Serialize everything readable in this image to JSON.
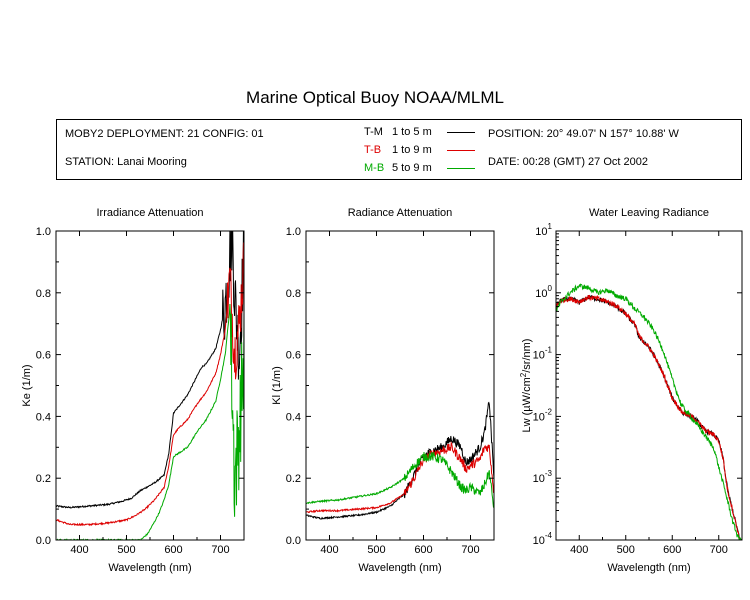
{
  "page": {
    "title": "Marine Optical Buoy NOAA/MLML",
    "info": {
      "deployment": "MOBY2 DEPLOYMENT: 21 CONFIG: 01",
      "station": "STATION: Lanai Mooring",
      "position": "POSITION: 20° 49.07' N   157° 10.88' W",
      "date": "DATE: 00:28 (GMT) 27 Oct 2002"
    },
    "legend": [
      {
        "code": "T-M",
        "range": "1 to 5  m",
        "color": "#000000"
      },
      {
        "code": "T-B",
        "range": "1 to 9  m",
        "color": "#dd0000"
      },
      {
        "code": "M-B",
        "range": "5 to 9  m",
        "color": "#00aa00"
      }
    ]
  },
  "chart_data": [
    {
      "type": "line",
      "title": "Irradiance Attenuation",
      "xlabel": "Wavelength (nm)",
      "ylabel": "Ke  (1/m)",
      "xlim": [
        350,
        750
      ],
      "ylim": [
        0,
        1
      ],
      "xticks": [
        400,
        500,
        600,
        700
      ],
      "yticks": [
        0,
        0.2,
        0.4,
        0.6,
        0.8,
        1.0
      ],
      "ytick_labels": [
        "0.0",
        "0.2",
        "0.4",
        "0.6",
        "0.8",
        "1.0"
      ],
      "series": [
        {
          "name": "T-M",
          "color": "#000000",
          "x": [
            350,
            380,
            420,
            460,
            490,
            510,
            530,
            560,
            580,
            590,
            600,
            610,
            630,
            650,
            660,
            670,
            690,
            700,
            710,
            720,
            725,
            730,
            740,
            750
          ],
          "y": [
            0.11,
            0.105,
            0.11,
            0.115,
            0.125,
            0.135,
            0.16,
            0.185,
            0.21,
            0.28,
            0.41,
            0.43,
            0.47,
            0.53,
            0.56,
            0.57,
            0.62,
            0.68,
            0.76,
            0.92,
            1.0,
            0.8,
            0.6,
            0.95
          ],
          "noise_from": 705,
          "noise_amp": 0.25
        },
        {
          "name": "T-B",
          "color": "#dd0000",
          "x": [
            350,
            380,
            420,
            460,
            500,
            520,
            540,
            560,
            580,
            590,
            600,
            610,
            630,
            650,
            660,
            670,
            690,
            700,
            710,
            720,
            730,
            740,
            750
          ],
          "y": [
            0.065,
            0.05,
            0.05,
            0.055,
            0.065,
            0.08,
            0.1,
            0.13,
            0.17,
            0.24,
            0.34,
            0.36,
            0.39,
            0.44,
            0.46,
            0.48,
            0.54,
            0.6,
            0.68,
            0.85,
            0.6,
            0.7,
            0.9
          ],
          "noise_from": 715,
          "noise_amp": 0.2
        },
        {
          "name": "M-B",
          "color": "#00aa00",
          "x": [
            350,
            530,
            545,
            560,
            570,
            580,
            590,
            600,
            610,
            630,
            650,
            660,
            670,
            690,
            700,
            710,
            720,
            730,
            740,
            750
          ],
          "y": [
            0.0,
            0.0,
            0.02,
            0.06,
            0.09,
            0.13,
            0.18,
            0.27,
            0.28,
            0.3,
            0.35,
            0.37,
            0.39,
            0.45,
            0.52,
            0.6,
            0.75,
            0.2,
            0.35,
            0.6
          ],
          "noise_from": 720,
          "noise_amp": 0.35
        }
      ]
    },
    {
      "type": "line",
      "title": "Radiance Attenuation",
      "xlabel": "Wavelength (nm)",
      "ylabel": "Kl  (1/m)",
      "xlim": [
        350,
        750
      ],
      "ylim": [
        0,
        1
      ],
      "xticks": [
        400,
        500,
        600,
        700
      ],
      "yticks": [
        0,
        0.2,
        0.4,
        0.6,
        0.8,
        1.0
      ],
      "ytick_labels": [
        "0.0",
        "0.2",
        "0.4",
        "0.6",
        "0.8",
        "1.0"
      ],
      "series": [
        {
          "name": "T-M",
          "color": "#000000",
          "x": [
            350,
            380,
            420,
            460,
            500,
            530,
            560,
            580,
            600,
            620,
            640,
            660,
            680,
            690,
            700,
            720,
            730,
            740,
            750
          ],
          "y": [
            0.08,
            0.07,
            0.075,
            0.08,
            0.09,
            0.11,
            0.15,
            0.21,
            0.27,
            0.29,
            0.3,
            0.33,
            0.3,
            0.25,
            0.26,
            0.3,
            0.35,
            0.45,
            0.2
          ],
          "noise_from": 560,
          "noise_amp": 0.03
        },
        {
          "name": "T-B",
          "color": "#dd0000",
          "x": [
            350,
            380,
            420,
            460,
            500,
            530,
            560,
            580,
            600,
            620,
            640,
            660,
            680,
            690,
            700,
            720,
            730,
            740,
            750
          ],
          "y": [
            0.09,
            0.095,
            0.095,
            0.1,
            0.105,
            0.12,
            0.15,
            0.2,
            0.26,
            0.28,
            0.29,
            0.3,
            0.26,
            0.23,
            0.24,
            0.26,
            0.3,
            0.3,
            0.15
          ],
          "noise_from": 560,
          "noise_amp": 0.03
        },
        {
          "name": "M-B",
          "color": "#00aa00",
          "x": [
            350,
            380,
            420,
            460,
            500,
            530,
            560,
            580,
            600,
            620,
            640,
            660,
            680,
            690,
            700,
            720,
            730,
            740,
            750
          ],
          "y": [
            0.12,
            0.125,
            0.13,
            0.14,
            0.15,
            0.17,
            0.2,
            0.24,
            0.27,
            0.27,
            0.26,
            0.22,
            0.17,
            0.16,
            0.17,
            0.15,
            0.18,
            0.22,
            0.1
          ],
          "noise_from": 560,
          "noise_amp": 0.03
        }
      ]
    },
    {
      "type": "line",
      "title": "Water Leaving Radiance",
      "xlabel": "Wavelength (nm)",
      "ylabel": "Lw  (µW/cm²/sr/nm)",
      "ylabel_parts": [
        "Lw  (",
        "µ",
        "W/cm",
        "2",
        "/sr/nm)"
      ],
      "yscale": "log",
      "xlim": [
        350,
        750
      ],
      "ylim": [
        0.0001,
        10
      ],
      "xticks": [
        400,
        500,
        600,
        700
      ],
      "yticks": [
        0.0001,
        0.001,
        0.01,
        0.1,
        1,
        10
      ],
      "ytick_exponents": [
        "-4",
        "-3",
        "-2",
        "-1",
        "0",
        "1"
      ],
      "ytick_base": "10",
      "series": [
        {
          "name": "T-M",
          "color": "#000000",
          "x": [
            350,
            360,
            380,
            400,
            420,
            440,
            460,
            480,
            500,
            520,
            530,
            540,
            550,
            560,
            580,
            600,
            620,
            650,
            670,
            690,
            700,
            710,
            715,
            720,
            730,
            740,
            745
          ],
          "y": [
            0.6,
            0.75,
            0.8,
            0.7,
            0.85,
            0.8,
            0.7,
            0.6,
            0.45,
            0.3,
            0.18,
            0.16,
            0.13,
            0.1,
            0.05,
            0.02,
            0.012,
            0.009,
            0.006,
            0.005,
            0.004,
            0.002,
            0.001,
            0.0006,
            0.0003,
            0.00015,
            0.0001
          ],
          "noise_from": 350,
          "noise_amp": 0.08
        },
        {
          "name": "T-B",
          "color": "#dd0000",
          "x": [
            350,
            360,
            380,
            400,
            420,
            440,
            460,
            480,
            500,
            520,
            530,
            540,
            550,
            560,
            580,
            600,
            620,
            650,
            670,
            690,
            700,
            710,
            715,
            720,
            730,
            740,
            745
          ],
          "y": [
            0.6,
            0.75,
            0.8,
            0.72,
            0.85,
            0.8,
            0.72,
            0.62,
            0.46,
            0.3,
            0.19,
            0.16,
            0.13,
            0.1,
            0.05,
            0.02,
            0.012,
            0.009,
            0.006,
            0.005,
            0.004,
            0.002,
            0.001,
            0.0006,
            0.0003,
            0.00015,
            0.0001
          ],
          "noise_from": 350,
          "noise_amp": 0.08
        },
        {
          "name": "M-B",
          "color": "#00aa00",
          "x": [
            350,
            360,
            380,
            400,
            420,
            440,
            460,
            480,
            500,
            520,
            540,
            560,
            580,
            600,
            620,
            650,
            670,
            690,
            700,
            710,
            720,
            730,
            740,
            745
          ],
          "y": [
            0.5,
            0.7,
            1.0,
            1.3,
            1.2,
            1.0,
            1.1,
            0.9,
            0.8,
            0.55,
            0.4,
            0.25,
            0.12,
            0.04,
            0.015,
            0.008,
            0.005,
            0.003,
            0.0015,
            0.0008,
            0.0004,
            0.0002,
            0.00012,
            0.0001
          ],
          "noise_from": 350,
          "noise_amp": 0.08
        }
      ]
    }
  ]
}
